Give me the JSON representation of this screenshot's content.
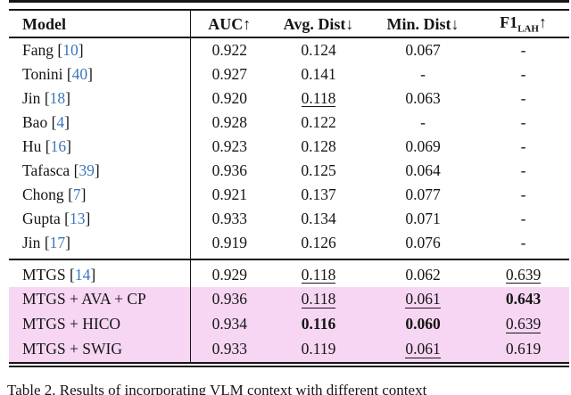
{
  "colors": {
    "highlight_row_bg": "#f6d6f2",
    "citation_blue": "#3c76ba",
    "rule_black": "#161616"
  },
  "caption": "Table 2. Results of incorporating VLM context with different context",
  "table": {
    "columns": [
      {
        "key": "model",
        "label": "Model"
      },
      {
        "key": "auc",
        "label": "AUC",
        "arrow": "↑"
      },
      {
        "key": "avg-dist",
        "label": "Avg. Dist",
        "arrow": "↓"
      },
      {
        "key": "min-dist",
        "label": "Min. Dist",
        "arrow": "↓"
      },
      {
        "key": "f1-lah",
        "label": "F1",
        "sub": "LAH",
        "arrow": "↑"
      }
    ],
    "rows": [
      {
        "model": "Fang",
        "cite": "10",
        "cells": [
          {
            "t": "0.922"
          },
          {
            "t": "0.124"
          },
          {
            "t": "0.067"
          },
          {
            "t": "-"
          }
        ]
      },
      {
        "model": "Tonini",
        "cite": "40",
        "cells": [
          {
            "t": "0.927"
          },
          {
            "t": "0.141"
          },
          {
            "t": "-"
          },
          {
            "t": "-"
          }
        ]
      },
      {
        "model": "Jin",
        "cite": "18",
        "cells": [
          {
            "t": "0.920"
          },
          {
            "t": "0.118",
            "s": "u"
          },
          {
            "t": "0.063"
          },
          {
            "t": "-"
          }
        ]
      },
      {
        "model": "Bao",
        "cite": "4",
        "cells": [
          {
            "t": "0.928"
          },
          {
            "t": "0.122"
          },
          {
            "t": "-"
          },
          {
            "t": "-"
          }
        ]
      },
      {
        "model": "Hu",
        "cite": "16",
        "cells": [
          {
            "t": "0.923"
          },
          {
            "t": "0.128"
          },
          {
            "t": "0.069"
          },
          {
            "t": "-"
          }
        ]
      },
      {
        "model": "Tafasca",
        "cite": "39",
        "cells": [
          {
            "t": "0.936"
          },
          {
            "t": "0.125"
          },
          {
            "t": "0.064"
          },
          {
            "t": "-"
          }
        ]
      },
      {
        "model": "Chong",
        "cite": "7",
        "cells": [
          {
            "t": "0.921"
          },
          {
            "t": "0.137"
          },
          {
            "t": "0.077"
          },
          {
            "t": "-"
          }
        ]
      },
      {
        "model": "Gupta",
        "cite": "13",
        "cells": [
          {
            "t": "0.933"
          },
          {
            "t": "0.134"
          },
          {
            "t": "0.071"
          },
          {
            "t": "-"
          }
        ]
      },
      {
        "model": "Jin",
        "cite": "17",
        "cells": [
          {
            "t": "0.919"
          },
          {
            "t": "0.126"
          },
          {
            "t": "0.076"
          },
          {
            "t": "-"
          }
        ],
        "section_end": true
      },
      {
        "model": "MTGS",
        "cite": "14",
        "cells": [
          {
            "t": "0.929"
          },
          {
            "t": "0.118",
            "s": "u"
          },
          {
            "t": "0.062"
          },
          {
            "t": "0.639",
            "s": "u"
          }
        ],
        "section_start": true
      },
      {
        "model": "MTGS + AVA + CP",
        "cite": null,
        "highlight": true,
        "cells": [
          {
            "t": "0.936"
          },
          {
            "t": "0.118",
            "s": "u"
          },
          {
            "t": "0.061",
            "s": "u"
          },
          {
            "t": "0.643",
            "s": "b"
          }
        ]
      },
      {
        "model": "MTGS + HICO",
        "cite": null,
        "highlight": true,
        "cells": [
          {
            "t": "0.934"
          },
          {
            "t": "0.116",
            "s": "b"
          },
          {
            "t": "0.060",
            "s": "b"
          },
          {
            "t": "0.639",
            "s": "u"
          }
        ]
      },
      {
        "model": "MTGS + SWIG",
        "cite": null,
        "highlight": true,
        "cells": [
          {
            "t": "0.933"
          },
          {
            "t": "0.119"
          },
          {
            "t": "0.061",
            "s": "u"
          },
          {
            "t": "0.619"
          }
        ]
      }
    ]
  }
}
